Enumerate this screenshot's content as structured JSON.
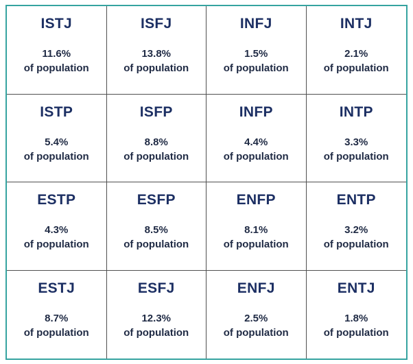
{
  "chart_data": {
    "type": "table",
    "suffix": "of population",
    "cells": [
      {
        "type": "ISTJ",
        "percent_label": "11.6%",
        "value": 11.6
      },
      {
        "type": "ISFJ",
        "percent_label": "13.8%",
        "value": 13.8
      },
      {
        "type": "INFJ",
        "percent_label": "1.5%",
        "value": 1.5
      },
      {
        "type": "INTJ",
        "percent_label": "2.1%",
        "value": 2.1
      },
      {
        "type": "ISTP",
        "percent_label": "5.4%",
        "value": 5.4
      },
      {
        "type": "ISFP",
        "percent_label": "8.8%",
        "value": 8.8
      },
      {
        "type": "INFP",
        "percent_label": "4.4%",
        "value": 4.4
      },
      {
        "type": "INTP",
        "percent_label": "3.3%",
        "value": 3.3
      },
      {
        "type": "ESTP",
        "percent_label": "4.3%",
        "value": 4.3
      },
      {
        "type": "ESFP",
        "percent_label": "8.5%",
        "value": 8.5
      },
      {
        "type": "ENFP",
        "percent_label": "8.1%",
        "value": 8.1
      },
      {
        "type": "ENTP",
        "percent_label": "3.2%",
        "value": 3.2
      },
      {
        "type": "ESTJ",
        "percent_label": "8.7%",
        "value": 8.7
      },
      {
        "type": "ESFJ",
        "percent_label": "12.3%",
        "value": 12.3
      },
      {
        "type": "ENFJ",
        "percent_label": "2.5%",
        "value": 2.5
      },
      {
        "type": "ENTJ",
        "percent_label": "1.8%",
        "value": 1.8
      }
    ]
  },
  "colors": {
    "frame": "#35a3a0",
    "divider": "#4f4f4f",
    "type_text": "#1c2f63",
    "body_text": "#1f2a44"
  }
}
